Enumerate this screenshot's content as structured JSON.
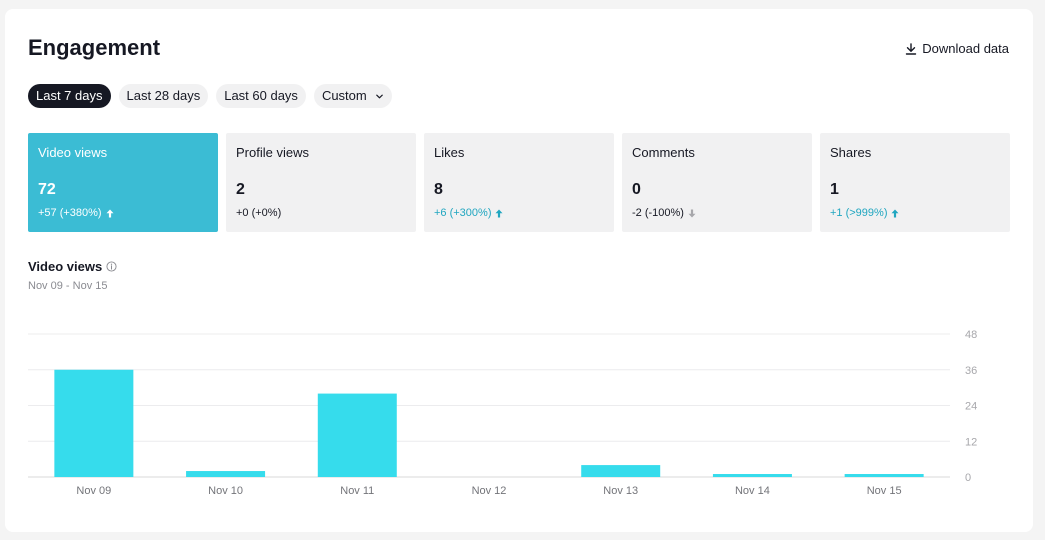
{
  "header": {
    "title": "Engagement",
    "download_label": "Download data"
  },
  "ranges": [
    {
      "label": "Last 7 days",
      "active": true
    },
    {
      "label": "Last 28 days",
      "active": false
    },
    {
      "label": "Last 60 days",
      "active": false
    },
    {
      "label": "Custom",
      "active": false
    }
  ],
  "metrics": [
    {
      "label": "Video views",
      "value": "72",
      "change": "+57 (+380%)",
      "direction": "up",
      "active": true
    },
    {
      "label": "Profile views",
      "value": "2",
      "change": "+0 (+0%)",
      "direction": "none",
      "active": false
    },
    {
      "label": "Likes",
      "value": "8",
      "change": "+6 (+300%)",
      "direction": "up",
      "active": false
    },
    {
      "label": "Comments",
      "value": "0",
      "change": "-2 (-100%)",
      "direction": "down",
      "active": false
    },
    {
      "label": "Shares",
      "value": "1",
      "change": "+1 (>999%)",
      "direction": "up",
      "active": false
    }
  ],
  "colors": {
    "accent": "#3bbcd4",
    "bar": "#36dcec",
    "up": "#20a6c0",
    "down_icon": "#a7a7ab"
  },
  "chart": {
    "title": "Video views",
    "date_range": "Nov 09 - Nov 15"
  },
  "chart_data": {
    "type": "bar",
    "title": "Video views",
    "categories": [
      "Nov 09",
      "Nov 10",
      "Nov 11",
      "Nov 12",
      "Nov 13",
      "Nov 14",
      "Nov 15"
    ],
    "values": [
      36,
      2,
      28,
      0,
      4,
      1,
      1
    ],
    "yticks": [
      0,
      12,
      24,
      36,
      48
    ],
    "ylim": [
      0,
      48
    ],
    "y_axis_side": "right",
    "grid": true
  }
}
